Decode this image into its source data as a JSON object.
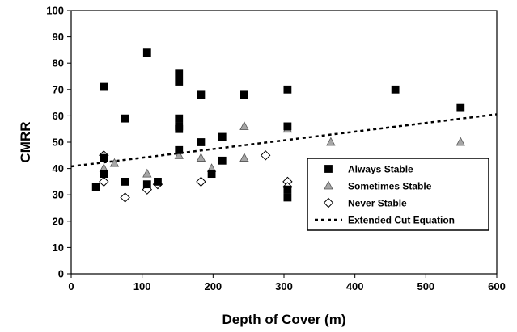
{
  "chart_data": {
    "type": "scatter",
    "title": "",
    "xlabel": "Depth of Cover (m)",
    "ylabel": "CMRR",
    "xlim": [
      0,
      600
    ],
    "ylim": [
      0,
      100
    ],
    "xticks": [
      0,
      100,
      200,
      300,
      400,
      500,
      600
    ],
    "yticks": [
      0,
      10,
      20,
      30,
      40,
      50,
      60,
      70,
      80,
      90,
      100
    ],
    "grid": false,
    "legend_position": "bottom-right",
    "series": [
      {
        "name": "Always Stable",
        "marker": "square",
        "color": "#000000",
        "points": [
          [
            35,
            33
          ],
          [
            46,
            71
          ],
          [
            46,
            44
          ],
          [
            46,
            38
          ],
          [
            76,
            59
          ],
          [
            76,
            35
          ],
          [
            107,
            84
          ],
          [
            107,
            34
          ],
          [
            122,
            35
          ],
          [
            152,
            76
          ],
          [
            152,
            73
          ],
          [
            152,
            59
          ],
          [
            152,
            56
          ],
          [
            152,
            55
          ],
          [
            152,
            47
          ],
          [
            183,
            68
          ],
          [
            183,
            50
          ],
          [
            198,
            38
          ],
          [
            213,
            52
          ],
          [
            213,
            43
          ],
          [
            244,
            68
          ],
          [
            305,
            70
          ],
          [
            305,
            56
          ],
          [
            305,
            32
          ],
          [
            305,
            29
          ],
          [
            457,
            70
          ],
          [
            549,
            63
          ]
        ]
      },
      {
        "name": "Sometimes Stable",
        "marker": "triangle",
        "color": "#a6a6a6",
        "points": [
          [
            46,
            40
          ],
          [
            61,
            42
          ],
          [
            107,
            38
          ],
          [
            152,
            45
          ],
          [
            183,
            44
          ],
          [
            198,
            40
          ],
          [
            244,
            56
          ],
          [
            244,
            44
          ],
          [
            305,
            55
          ],
          [
            366,
            50
          ],
          [
            549,
            50
          ]
        ]
      },
      {
        "name": "Never Stable",
        "marker": "diamond",
        "color": "#ffffff",
        "points": [
          [
            46,
            45
          ],
          [
            46,
            35
          ],
          [
            76,
            29
          ],
          [
            107,
            32
          ],
          [
            122,
            34
          ],
          [
            183,
            35
          ],
          [
            274,
            45
          ],
          [
            305,
            35
          ],
          [
            305,
            33
          ]
        ]
      }
    ],
    "trendline": {
      "name": "Extended Cut Equation",
      "style": "dashed",
      "points": [
        [
          0,
          40.8
        ],
        [
          600,
          60.6
        ]
      ]
    }
  }
}
